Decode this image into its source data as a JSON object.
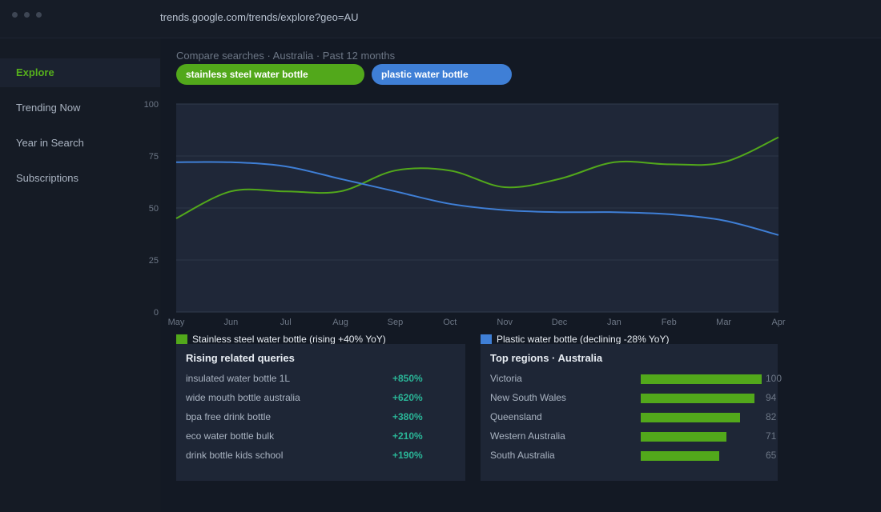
{
  "browser": {
    "url": "trends.google.com/trends/explore?geo=AU"
  },
  "sidebar": {
    "items": [
      {
        "label": "Explore",
        "active": true
      },
      {
        "label": "Trending Now"
      },
      {
        "label": "Year in Search"
      },
      {
        "label": "Subscriptions"
      }
    ]
  },
  "header": {
    "subtitle": "Compare searches · Australia · Past 12 months",
    "chips": [
      {
        "label": "stainless steel water bottle",
        "color": "#52a81b"
      },
      {
        "label": "plastic water bottle",
        "color": "#3f7fd6"
      }
    ]
  },
  "chart_data": {
    "type": "line",
    "categories": [
      "May",
      "Jun",
      "Jul",
      "Aug",
      "Sep",
      "Oct",
      "Nov",
      "Dec",
      "Jan",
      "Feb",
      "Mar",
      "Apr"
    ],
    "yticks": [
      100,
      75,
      50,
      25,
      0
    ],
    "ylim": [
      0,
      100
    ],
    "grid": true,
    "series": [
      {
        "name": "Stainless steel water bottle",
        "color": "#52a81b",
        "values": [
          45,
          58,
          58,
          58,
          68,
          68,
          60,
          64,
          72,
          71,
          72,
          84
        ]
      },
      {
        "name": "Plastic water bottle",
        "color": "#3f7fd6",
        "values": [
          72,
          72,
          70,
          64,
          58,
          52,
          49,
          48,
          48,
          47,
          44,
          37
        ]
      }
    ]
  },
  "legend": {
    "stainless": {
      "label": "Stainless steel water bottle  (rising +40% YoY)",
      "color": "#52a81b"
    },
    "plastic": {
      "label": "Plastic water bottle  (declining -28% YoY)",
      "color": "#3f7fd6"
    }
  },
  "rising": {
    "title": "Rising related queries",
    "rows": [
      {
        "query": "insulated water bottle 1L",
        "value": "+850%"
      },
      {
        "query": "wide mouth bottle australia",
        "value": "+620%"
      },
      {
        "query": "bpa free drink bottle",
        "value": "+380%"
      },
      {
        "query": "eco water bottle bulk",
        "value": "+210%"
      },
      {
        "query": "drink bottle kids school",
        "value": "+190%"
      }
    ]
  },
  "regions": {
    "title": "Top regions · Australia",
    "rows": [
      {
        "name": "Victoria",
        "value": 100
      },
      {
        "name": "New South Wales",
        "value": 94
      },
      {
        "name": "Queensland",
        "value": 82
      },
      {
        "name": "Western Australia",
        "value": 71
      },
      {
        "name": "South Australia",
        "value": 65
      }
    ]
  }
}
